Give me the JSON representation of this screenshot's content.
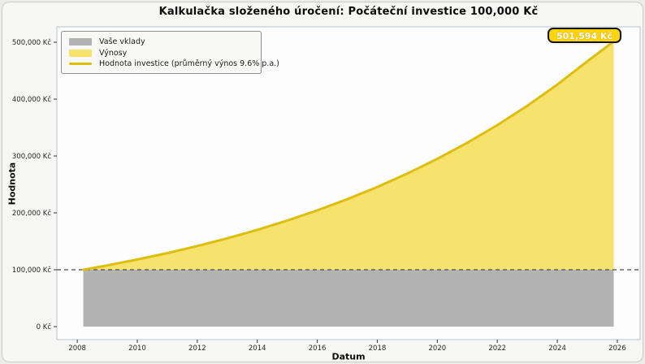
{
  "title": "Kalkulačka složeného úročení: Počáteční investice 100,000 Kč",
  "annotation": {
    "final_value_label": "501,594 Kč"
  },
  "legend": {
    "items": [
      {
        "label": "Vaše vklady",
        "swatch": "patch",
        "color": "#b3b3b3"
      },
      {
        "label": "Výnosy",
        "swatch": "patch",
        "color": "#f6e26d"
      },
      {
        "label": "Hodnota investice (průměrný výnos 9.6% p.a.)",
        "swatch": "line",
        "color": "#ddbe10"
      }
    ]
  },
  "colors": {
    "figure_bg": "#f6f6f5",
    "plot_bg": "#fdfdfd",
    "plot_border": "#b9c2c9",
    "deposits_fill": "#b3b3b3",
    "returns_fill": "#f6e26d",
    "investment_line": "#ddbe10",
    "reference_line": "#4d4d4d",
    "tick_text": "#262626",
    "annotation_bg": "#fdd20e"
  },
  "chart_data": {
    "type": "area",
    "title": "Kalkulačka složeného úročení: Počáteční investice 100,000 Kč",
    "xlabel": "Datum",
    "ylabel": "Hodnota",
    "grid": false,
    "legend_position": "upper-left",
    "x_axis": {
      "range": [
        2007.32,
        2026.76
      ],
      "ticks": [
        {
          "value": 2008,
          "label": "2008"
        },
        {
          "value": 2010,
          "label": "2010"
        },
        {
          "value": 2012,
          "label": "2012"
        },
        {
          "value": 2014,
          "label": "2014"
        },
        {
          "value": 2016,
          "label": "2016"
        },
        {
          "value": 2018,
          "label": "2018"
        },
        {
          "value": 2020,
          "label": "2020"
        },
        {
          "value": 2022,
          "label": "2022"
        },
        {
          "value": 2024,
          "label": "2024"
        },
        {
          "value": 2026,
          "label": "2026"
        }
      ]
    },
    "y_axis": {
      "range": [
        -22857,
        527143
      ],
      "ticks": [
        {
          "value": 0,
          "label": "0 Kč"
        },
        {
          "value": 100000,
          "label": "100,000 Kč"
        },
        {
          "value": 200000,
          "label": "200,000 Kč"
        },
        {
          "value": 300000,
          "label": "300,000 Kč"
        },
        {
          "value": 400000,
          "label": "400,000 Kč"
        },
        {
          "value": 500000,
          "label": "500,000 Kč"
        }
      ]
    },
    "initial_investment": 100000,
    "average_return_pa_percent": 9.6,
    "start_year": 2008.2,
    "end_year": 2025.88,
    "final_value": 501594,
    "reference_line": {
      "y": 100000,
      "style": "dashed"
    },
    "series": [
      {
        "name": "Vaše vklady",
        "type": "constant-area",
        "value": 100000
      },
      {
        "name": "Hodnota investice",
        "type": "line-with-area-above-deposits",
        "points": [
          [
            2008.2,
            100000
          ],
          [
            2009,
            107609
          ],
          [
            2010,
            117941
          ],
          [
            2011,
            129263
          ],
          [
            2012,
            141674
          ],
          [
            2013,
            155275
          ],
          [
            2014,
            170182
          ],
          [
            2015,
            186521
          ],
          [
            2016,
            204428
          ],
          [
            2017,
            224054
          ],
          [
            2018,
            245564
          ],
          [
            2019,
            269140
          ],
          [
            2020,
            294979
          ],
          [
            2021,
            323298
          ],
          [
            2022,
            354336
          ],
          [
            2023,
            388354
          ],
          [
            2024,
            425639
          ],
          [
            2025,
            466503
          ],
          [
            2025.88,
            501594
          ]
        ]
      }
    ]
  }
}
